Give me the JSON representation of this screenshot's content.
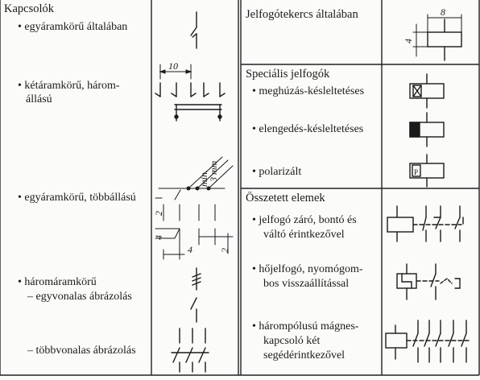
{
  "left": {
    "heading": "Kapcsolók",
    "rows": [
      {
        "line1": "• egyáramkörű általában"
      },
      {
        "line1": "• kétáramkörű, három-",
        "line2": "állású"
      },
      {
        "line1": "• egyáramkörű, többállású"
      },
      {
        "line1": "• háromáramkörű",
        "line2": "– egyvonalas ábrázolás"
      },
      {
        "line1": "– többvonalas ábrázolás"
      }
    ],
    "dims": {
      "ten": "10",
      "min": "min.",
      "three_mm": "3 mm",
      "two_a": "2",
      "four_a": "4",
      "four_b": "4",
      "two_b": "2"
    }
  },
  "right": {
    "coil_general": "Jelfogótekercs általában",
    "coil_dims": {
      "eight": "8",
      "four": "4"
    },
    "special_heading": "Speciális jelfogók",
    "special_rows": [
      "• meghúzás-késleltetéses",
      "• elengedés-késleltetéses",
      "• polarizált"
    ],
    "polar_letter": "P",
    "composite_heading": "Összetett elemek",
    "composite_rows": [
      {
        "line1": "• jelfogó záró, bontó és",
        "line2": "váltó érintkezővel"
      },
      {
        "line1": "• hőjelfogó, nyomógom-",
        "line2": "bos visszaállítással"
      },
      {
        "line1": "• hárompólusú mágnes-",
        "line2": "kapcsoló két",
        "line3": "segédérintkezővel"
      }
    ]
  }
}
